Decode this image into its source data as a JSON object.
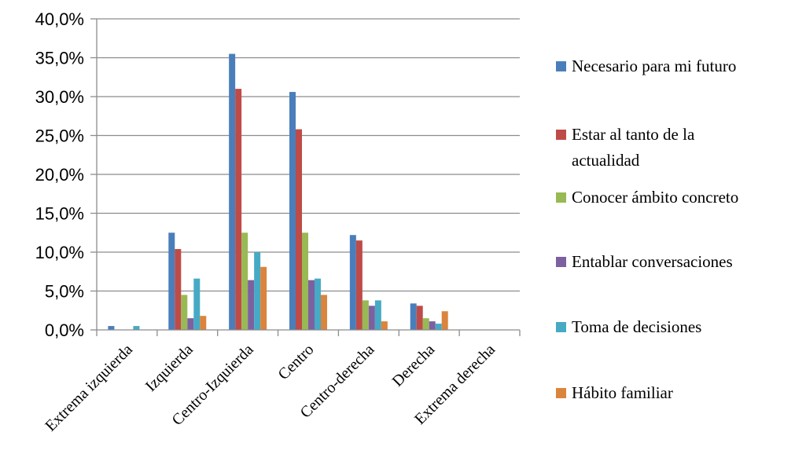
{
  "chart_data": {
    "type": "bar",
    "categories": [
      "Extrema izquierda",
      "Izquierda",
      "Centro-Izquierda",
      "Centro",
      "Centro-derecha",
      "Derecha",
      "Extrema derecha"
    ],
    "series": [
      {
        "name": "Necesario para mi futuro",
        "color": "#4A7EBB",
        "values": [
          0.005,
          0.125,
          0.355,
          0.306,
          0.122,
          0.034,
          0.0
        ]
      },
      {
        "name": "Estar al tanto de la actualidad",
        "color": "#BE4B48",
        "values": [
          0.0,
          0.104,
          0.31,
          0.258,
          0.115,
          0.031,
          0.0
        ]
      },
      {
        "name": "Conocer ámbito concreto",
        "color": "#98B954",
        "values": [
          0.0,
          0.045,
          0.125,
          0.125,
          0.038,
          0.015,
          0.0
        ]
      },
      {
        "name": "Entablar conversaciones",
        "color": "#7D60A0",
        "values": [
          0.0,
          0.015,
          0.064,
          0.064,
          0.031,
          0.011,
          0.0
        ]
      },
      {
        "name": "Toma de decisiones",
        "color": "#46AAC5",
        "values": [
          0.005,
          0.066,
          0.1,
          0.066,
          0.038,
          0.008,
          0.0
        ]
      },
      {
        "name": "Hábito familiar",
        "color": "#DB843D",
        "values": [
          0.0,
          0.018,
          0.081,
          0.045,
          0.011,
          0.024,
          0.0
        ]
      }
    ],
    "yticks": [
      "0,0%",
      "5,0%",
      "10,0%",
      "15,0%",
      "20,0%",
      "25,0%",
      "30,0%",
      "35,0%",
      "40,0%"
    ],
    "ylim": [
      0,
      0.4
    ],
    "legend": {
      "position": "right",
      "labels": [
        [
          "Necesario para mi futuro"
        ],
        [
          "Estar al tanto de la",
          "actualidad"
        ],
        [
          "Conocer ámbito concreto"
        ],
        [
          "Entablar conversaciones"
        ],
        [
          "Toma de decisiones"
        ],
        [
          "Hábito familiar"
        ]
      ]
    },
    "grid": true,
    "title": "",
    "xlabel": "",
    "ylabel": ""
  }
}
